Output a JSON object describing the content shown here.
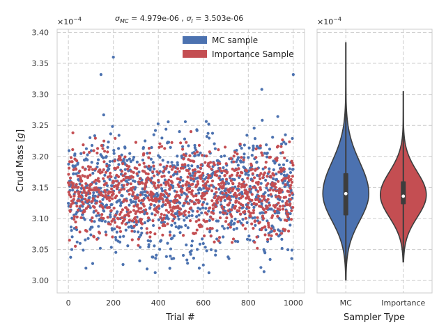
{
  "chart_data": [
    {
      "type": "scatter",
      "title_sigma_mc": "4.979e-06",
      "title_sigma_i": "3.503e-06",
      "xlabel": "Trial #",
      "ylabel": "Crud Mass",
      "ylabel_unit": "g",
      "y_scale_label": "×10",
      "y_scale_exp": "−4",
      "xlim": [
        -50,
        1050
      ],
      "ylim": [
        2.98,
        3.405
      ],
      "x_ticks": [
        0,
        200,
        400,
        600,
        800,
        1000
      ],
      "x_tick_labels": [
        "0",
        "200",
        "400",
        "600",
        "800",
        "1000"
      ],
      "y_ticks": [
        3.0,
        3.05,
        3.1,
        3.15,
        3.2,
        3.25,
        3.3,
        3.35,
        3.4
      ],
      "y_tick_labels": [
        "3.00",
        "3.05",
        "3.10",
        "3.15",
        "3.20",
        "3.25",
        "3.30",
        "3.35",
        "3.40"
      ],
      "grid": true,
      "legend_position": "top-right",
      "series": [
        {
          "name": "MC sample",
          "color": "#4c72b0",
          "n": 1000,
          "mean": 3.14,
          "std": 0.0498,
          "highlight_points": [
            [
              200,
              3.36
            ],
            [
              145,
              3.332
            ],
            [
              1000,
              3.332
            ],
            [
              860,
              3.308
            ],
            [
              600,
              3.025
            ],
            [
              460,
              3.035
            ],
            [
              15,
              3.05
            ]
          ]
        },
        {
          "name": "Importance Sample",
          "color": "#c44e52",
          "n": 1000,
          "mean": 3.14,
          "std": 0.035,
          "highlight_points": [
            [
              20,
              3.238
            ],
            [
              545,
              3.24
            ],
            [
              5,
              3.065
            ]
          ]
        }
      ]
    },
    {
      "type": "violin",
      "y_scale_label": "×10",
      "y_scale_exp": "−4",
      "xlabel": "Sampler Type",
      "categories": [
        "MC",
        "Importance"
      ],
      "ylim": [
        2.98,
        3.405
      ],
      "y_ticks": [
        3.0,
        3.05,
        3.1,
        3.15,
        3.2,
        3.25,
        3.3,
        3.35,
        3.4
      ],
      "grid": true,
      "series": [
        {
          "name": "MC",
          "color": "#4c72b0",
          "min": 3.001,
          "max": 3.384,
          "q1": 3.105,
          "median": 3.14,
          "q3": 3.173,
          "mode": 3.14
        },
        {
          "name": "Importance",
          "color": "#c44e52",
          "min": 3.03,
          "max": 3.305,
          "q1": 3.123,
          "median": 3.136,
          "q3": 3.16,
          "mode": 3.138
        }
      ]
    }
  ]
}
